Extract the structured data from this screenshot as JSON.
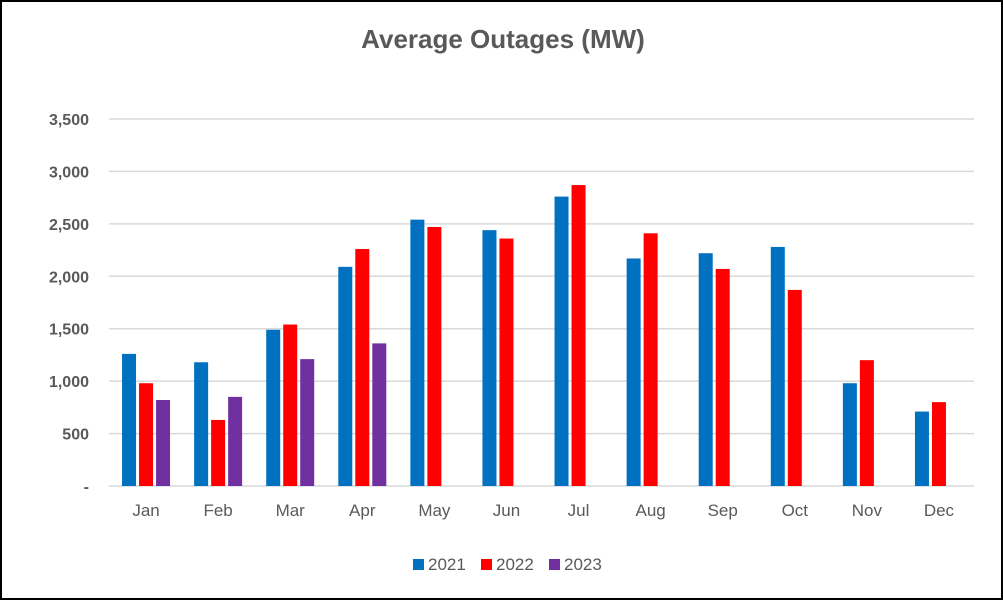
{
  "chart_data": {
    "type": "bar",
    "title": "Average Outages (MW)",
    "xlabel": "",
    "ylabel": "",
    "categories": [
      "Jan",
      "Feb",
      "Mar",
      "Apr",
      "May",
      "Jun",
      "Jul",
      "Aug",
      "Sep",
      "Oct",
      "Nov",
      "Dec"
    ],
    "series": [
      {
        "name": "2021",
        "color": "#0070C0",
        "values": [
          1260,
          1180,
          1490,
          2090,
          2540,
          2440,
          2760,
          2170,
          2220,
          2280,
          980,
          710
        ]
      },
      {
        "name": "2022",
        "color": "#FF0000",
        "values": [
          980,
          630,
          1540,
          2260,
          2470,
          2360,
          2870,
          2410,
          2070,
          1870,
          1200,
          800
        ]
      },
      {
        "name": "2023",
        "color": "#7030A0",
        "values": [
          820,
          850,
          1210,
          1360,
          null,
          null,
          null,
          null,
          null,
          null,
          null,
          null
        ]
      }
    ],
    "ylim": [
      0,
      3500
    ],
    "y_ticks": [
      {
        "value": 0,
        "label": "-"
      },
      {
        "value": 500,
        "label": "500"
      },
      {
        "value": 1000,
        "label": "1,000"
      },
      {
        "value": 1500,
        "label": "1,500"
      },
      {
        "value": 2000,
        "label": "2,000"
      },
      {
        "value": 2500,
        "label": "2,500"
      },
      {
        "value": 3000,
        "label": "3,000"
      },
      {
        "value": 3500,
        "label": "3,500"
      }
    ],
    "grid": true,
    "legend_position": "bottom",
    "gridline_color": "#D9D9D9",
    "text_color": "#595959"
  }
}
